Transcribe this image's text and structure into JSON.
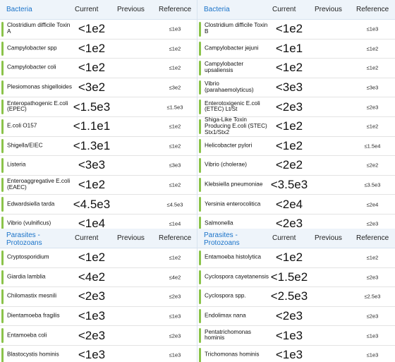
{
  "columns": {
    "current": "Current",
    "previous": "Previous",
    "reference": "Reference"
  },
  "panels": [
    {
      "category": "Bacteria",
      "rows": [
        {
          "name": "Clostridium difficile Toxin A",
          "current": "<1e2",
          "reference": "≤1e3"
        },
        {
          "name": "Campylobacter spp",
          "current": "<1e2",
          "reference": "≤1e2"
        },
        {
          "name": "Campylobacter coli",
          "current": "<1e2",
          "reference": "≤1e2"
        },
        {
          "name": "Plesiomonas shigelloides",
          "current": "<3e2",
          "reference": "≤3e2"
        },
        {
          "name": "Enteropathogenic E.coli (EPEC)",
          "current": "<1.5e3",
          "reference": "≤1.5e3"
        },
        {
          "name": "E.coli O157",
          "current": "<1.1e1",
          "reference": "≤1e2"
        },
        {
          "name": "Shigella/EIEC",
          "current": "<1.3e1",
          "reference": "≤1e2"
        },
        {
          "name": "Listeria",
          "current": "<3e3",
          "reference": "≤3e3"
        },
        {
          "name": "Enteroaggregative E.coli (EAEC)",
          "current": "<1e2",
          "reference": "≤1e2"
        },
        {
          "name": "Edwardsiella tarda",
          "current": "<4.5e3",
          "reference": "≤4.5e3"
        },
        {
          "name": "Vibrio (vulnificus)",
          "current": "<1e4",
          "reference": "≤1e4"
        }
      ]
    },
    {
      "category": "Bacteria",
      "rows": [
        {
          "name": "Clostridium difficile Toxin B",
          "current": "<1e2",
          "reference": "≤1e3"
        },
        {
          "name": "Campylobacter jejuni",
          "current": "<1e1",
          "reference": "≤1e2"
        },
        {
          "name": "Campylobacter upsaliensis",
          "current": "<1e2",
          "reference": "≤1e2"
        },
        {
          "name": "Vibrio (parahaemolyticus)",
          "current": "<3e3",
          "reference": "≤3e3"
        },
        {
          "name": "Enterotoxigenic E.coli (ETEC) Lt/St",
          "current": "<2e3",
          "reference": "≤2e3"
        },
        {
          "name": "Shiga-Like Toxin Producing E.coli (STEC) Stx1/Stx2",
          "current": "<1e2",
          "reference": "≤1e2"
        },
        {
          "name": "Helicobacter pylori",
          "current": "<1e2",
          "reference": "≤1.5e4"
        },
        {
          "name": "Vibrio (cholerae)",
          "current": "<2e2",
          "reference": "≤2e2"
        },
        {
          "name": "Klebsiella pneumoniae",
          "current": "<3.5e3",
          "reference": "≤3.5e3"
        },
        {
          "name": "Yersinia enterocolitica",
          "current": "<2e4",
          "reference": "≤2e4"
        },
        {
          "name": "Salmonella",
          "current": "<2e3",
          "reference": "≤2e3"
        }
      ]
    },
    {
      "category": "Parasites - Protozoans",
      "rows": [
        {
          "name": "Cryptosporidium",
          "current": "<1e2",
          "reference": "≤1e2"
        },
        {
          "name": "Giardia lamblia",
          "current": "<4e2",
          "reference": "≤4e2"
        },
        {
          "name": "Chilomastix mesnili",
          "current": "<2e3",
          "reference": "≤2e3"
        },
        {
          "name": "Dientamoeba fragilis",
          "current": "<1e3",
          "reference": "≤1e3"
        },
        {
          "name": "Entamoeba coli",
          "current": "<2e3",
          "reference": "≤2e3"
        },
        {
          "name": "Blastocystis hominis",
          "current": "<1e3",
          "reference": "≤1e3"
        }
      ]
    },
    {
      "category": "Parasites - Protozoans",
      "rows": [
        {
          "name": "Entamoeba histolytica",
          "current": "<1e2",
          "reference": "≤1e2"
        },
        {
          "name": "Cyclospora cayetanensis",
          "current": "<1.5e2",
          "reference": "≤2e3"
        },
        {
          "name": "Cyclospora spp.",
          "current": "<2.5e3",
          "reference": "≤2.5e3"
        },
        {
          "name": "Endolimax nana",
          "current": "<2e3",
          "reference": "≤2e3"
        },
        {
          "name": "Pentatrichomonas hominis",
          "current": "<1e3",
          "reference": "≤1e3"
        },
        {
          "name": "Trichomonas hominis",
          "current": "<1e3",
          "reference": "≤1e3"
        }
      ]
    }
  ]
}
